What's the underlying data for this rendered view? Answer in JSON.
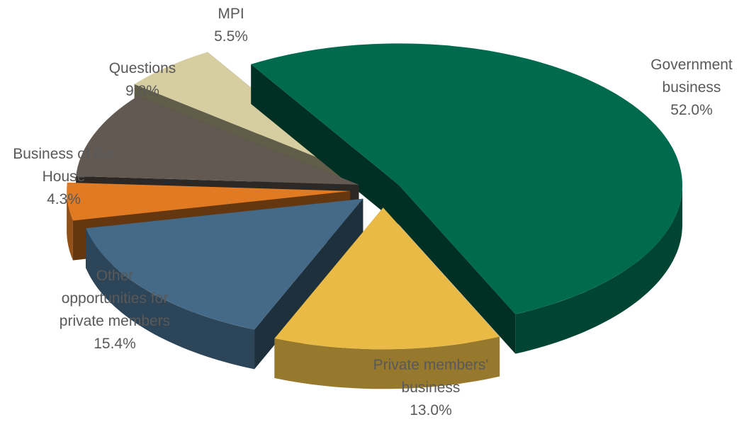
{
  "chart_data": {
    "type": "pie",
    "title": "",
    "slices": [
      {
        "key": "government",
        "label_lines": [
          "Government",
          "business"
        ],
        "value_label": "52.0%",
        "value": 52.0,
        "color": "#006A4E"
      },
      {
        "key": "private-members-business",
        "label_lines": [
          "Private members'",
          "business"
        ],
        "value_label": "13.0%",
        "value": 13.0,
        "color": "#E9BA45"
      },
      {
        "key": "other-opportunities",
        "label_lines": [
          "Other",
          "opportunities for",
          "private members"
        ],
        "value_label": "15.4%",
        "value": 15.4,
        "color": "#446A87"
      },
      {
        "key": "business-of-the-house",
        "label_lines": [
          "Business of the",
          "House"
        ],
        "value_label": "4.3%",
        "value": 4.3,
        "color": "#E07B24"
      },
      {
        "key": "questions",
        "label_lines": [
          "Questions"
        ],
        "value_label": "9.8%",
        "value": 9.8,
        "color": "#625A52"
      },
      {
        "key": "mpi",
        "label_lines": [
          "MPI"
        ],
        "value_label": "5.5%",
        "value": 5.5,
        "color": "#D6CEA0"
      }
    ],
    "legend": "none",
    "style": "3d-exploded"
  }
}
